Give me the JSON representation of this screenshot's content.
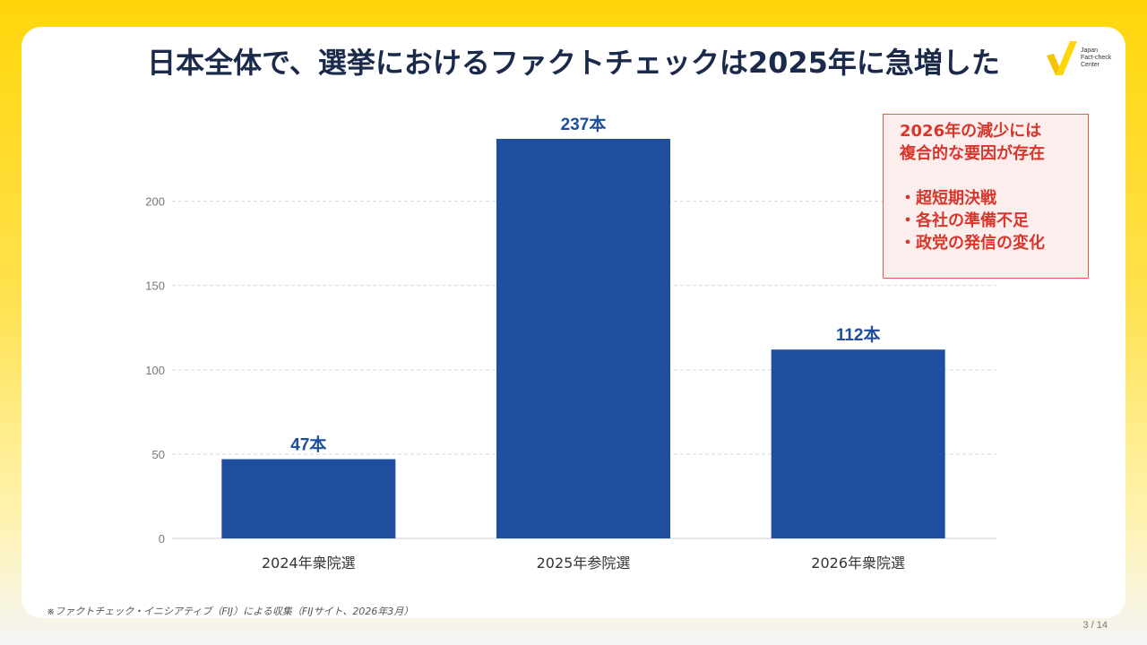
{
  "title": "日本全体で、選挙におけるファクトチェックは2025年に急増した",
  "logo": {
    "line1": "Japan",
    "line2": "Fact-check",
    "line3": "Center"
  },
  "chart_data": {
    "type": "bar",
    "title": "日本全体で、選挙におけるファクトチェックは2025年に急増した",
    "categories": [
      "2024年衆院選",
      "2025年参院選",
      "2026年衆院選"
    ],
    "values": [
      47,
      237,
      112
    ],
    "data_labels": [
      "47本",
      "237本",
      "112本"
    ],
    "yticks": [
      0,
      50,
      100,
      150,
      200
    ],
    "ylim": [
      0,
      237
    ],
    "xlabel": "",
    "ylabel": "",
    "grid": true,
    "bar_color": "#1f4e9e",
    "label_color": "#1f4e9e"
  },
  "note": {
    "heading_line1": "2026年の減少には",
    "heading_line2": "複合的な要因が存在",
    "items": [
      "・超短期決戦",
      "・各社の準備不足",
      "・政党の発信の変化"
    ],
    "border_color": "#e45a4f",
    "text_color": "#d7362b"
  },
  "source": "※ファクトチェック・イニシアティブ（FIJ）による収集（FIJサイト、2026年3月）",
  "page": "3 / 14"
}
